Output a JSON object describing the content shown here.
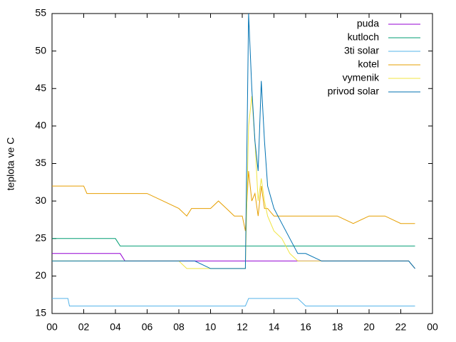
{
  "chart_data": {
    "type": "line",
    "ylabel": "teplota ve C",
    "x": [
      0,
      1,
      1.1,
      2,
      2.2,
      3,
      4,
      4.3,
      4.6,
      6,
      7,
      8,
      8.5,
      8.8,
      9,
      10,
      10.5,
      11,
      11.5,
      12,
      12.2,
      12.4,
      12.6,
      12.8,
      13,
      13.2,
      13.4,
      13.6,
      14,
      14.5,
      15,
      15.5,
      16,
      17,
      18,
      19,
      20,
      21,
      22,
      22.5,
      22.9
    ],
    "series": [
      {
        "name": "puda",
        "color": "#9400d3",
        "values": [
          23,
          23,
          23,
          23,
          23,
          23,
          23,
          23,
          22,
          22,
          22,
          22,
          22,
          22,
          22,
          22,
          22,
          22,
          22,
          22,
          22,
          22,
          22,
          22,
          22,
          22,
          22,
          22,
          22,
          22,
          22,
          22,
          22,
          22,
          22,
          22,
          22,
          22,
          22,
          22,
          21
        ]
      },
      {
        "name": "kutloch",
        "color": "#009e73",
        "values": [
          25,
          25,
          25,
          25,
          25,
          25,
          25,
          24,
          24,
          24,
          24,
          24,
          24,
          24,
          24,
          24,
          24,
          24,
          24,
          24,
          24,
          24,
          24,
          24,
          24,
          24,
          24,
          24,
          24,
          24,
          24,
          24,
          24,
          24,
          24,
          24,
          24,
          24,
          24,
          24,
          24
        ]
      },
      {
        "name": "3ti solar",
        "color": "#56b4e9",
        "values": [
          17,
          17,
          16,
          16,
          16,
          16,
          16,
          16,
          16,
          16,
          16,
          16,
          16,
          16,
          16,
          16,
          16,
          16,
          16,
          16,
          16,
          17,
          17,
          17,
          17,
          17,
          17,
          17,
          17,
          17,
          17,
          17,
          16,
          16,
          16,
          16,
          16,
          16,
          16,
          16,
          16
        ]
      },
      {
        "name": "kotel",
        "color": "#e69f00",
        "values": [
          32,
          32,
          32,
          32,
          31,
          31,
          31,
          31,
          31,
          31,
          30,
          29,
          28,
          29,
          29,
          29,
          30,
          29,
          28,
          28,
          26,
          34,
          30,
          31,
          28,
          32,
          29,
          29,
          28,
          28,
          28,
          28,
          28,
          28,
          28,
          27,
          28,
          28,
          27,
          27,
          27
        ]
      },
      {
        "name": "vymenik",
        "color": "#f0e442",
        "values": [
          22,
          22,
          22,
          22,
          22,
          22,
          22,
          22,
          22,
          22,
          22,
          22,
          21,
          21,
          21,
          21,
          21,
          21,
          21,
          21,
          21,
          40,
          44,
          38,
          30,
          33,
          30,
          28,
          26,
          25,
          23,
          22,
          22,
          22,
          22,
          22,
          22,
          22,
          22,
          22,
          21
        ]
      },
      {
        "name": "privod solar",
        "color": "#0072b2",
        "values": [
          22,
          22,
          22,
          22,
          22,
          22,
          22,
          22,
          22,
          22,
          22,
          22,
          22,
          22,
          22,
          21,
          21,
          21,
          21,
          21,
          21,
          55,
          45,
          38,
          34,
          46,
          38,
          32,
          29,
          27,
          25,
          23,
          23,
          22,
          22,
          22,
          22,
          22,
          22,
          22,
          21
        ]
      }
    ],
    "xlim": [
      0,
      24
    ],
    "xticks": [
      {
        "value": 0,
        "label": "00"
      },
      {
        "value": 2,
        "label": "02"
      },
      {
        "value": 4,
        "label": "04"
      },
      {
        "value": 6,
        "label": "06"
      },
      {
        "value": 8,
        "label": "08"
      },
      10,
      12,
      14,
      16,
      18,
      20,
      22,
      {
        "value": 24,
        "label": "00"
      }
    ],
    "ylim": [
      15,
      55
    ],
    "yticks": [
      15,
      20,
      25,
      30,
      35,
      40,
      45,
      50,
      55
    ],
    "legend": "top-right"
  }
}
